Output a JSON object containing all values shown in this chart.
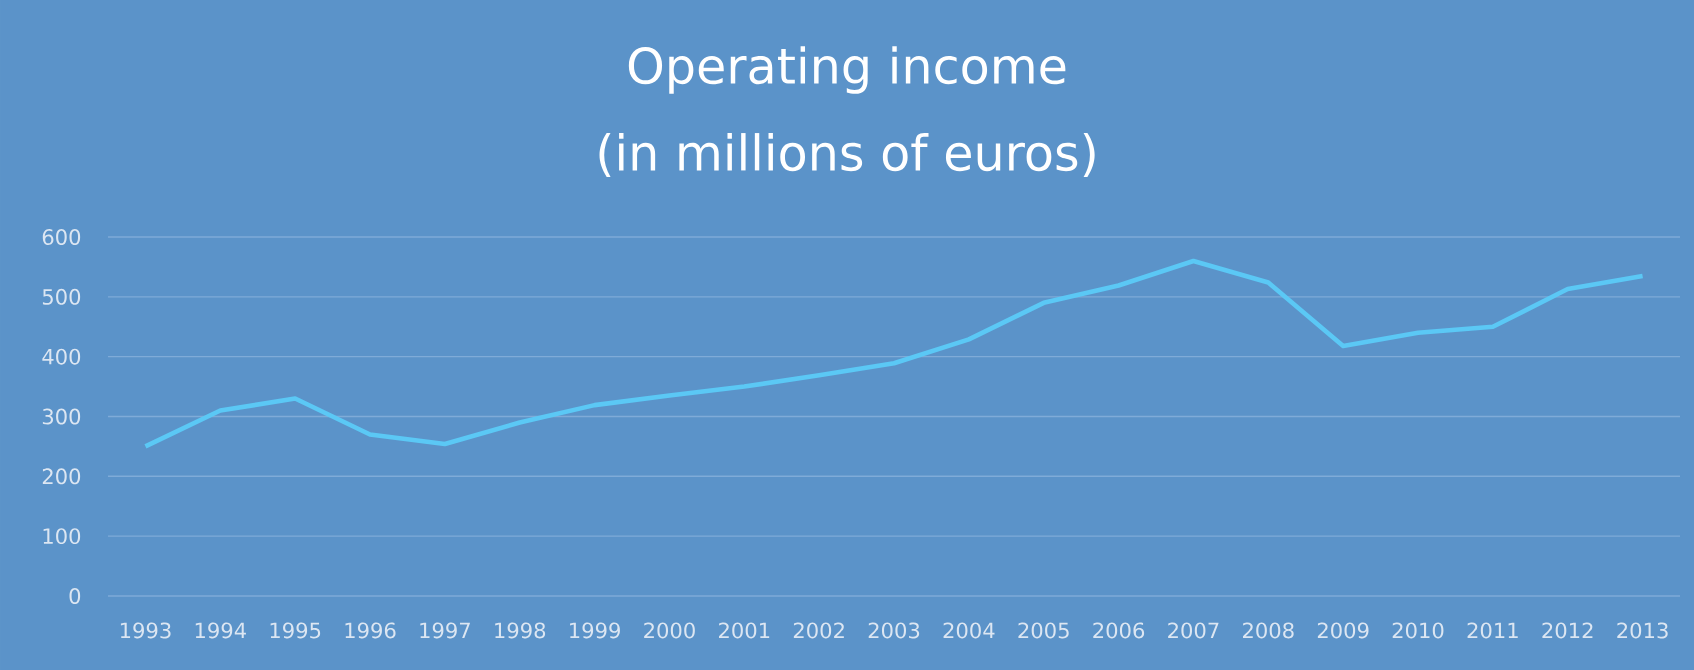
{
  "chart_data": {
    "type": "line",
    "title": "Operating income",
    "subtitle": "(in millions of euros)",
    "categories": [
      "1993",
      "1994",
      "1995",
      "1996",
      "1997",
      "1998",
      "1999",
      "2000",
      "2001",
      "2002",
      "2003",
      "2004",
      "2005",
      "2006",
      "2007",
      "2008",
      "2009",
      "2010",
      "2011",
      "2012",
      "2013"
    ],
    "series": [
      {
        "color": "#5bc8f5",
        "values": [
          250,
          310,
          330,
          270,
          254,
          290,
          319,
          335,
          350,
          369,
          389,
          429,
          490,
          519,
          560,
          524,
          418,
          440,
          450,
          513,
          535
        ]
      }
    ],
    "ylim": [
      0,
      600
    ],
    "yticks": [
      0,
      100,
      200,
      300,
      400,
      500,
      600
    ],
    "grid": "y",
    "marker": "none",
    "line_style": "solid"
  }
}
